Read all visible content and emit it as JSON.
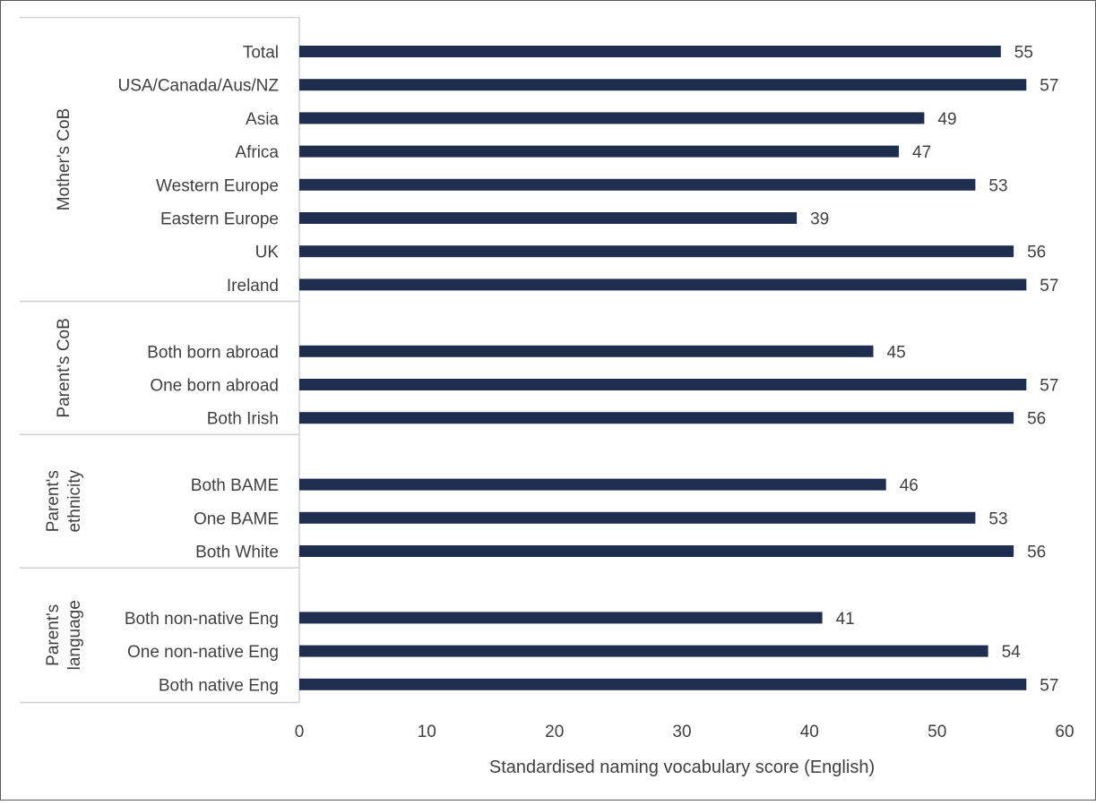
{
  "chart_data": {
    "type": "bar",
    "orientation": "horizontal",
    "xlabel": "Standardised naming vocabulary score (English)",
    "xlim": [
      0,
      60
    ],
    "xticks": [
      0,
      10,
      20,
      30,
      40,
      50,
      60
    ],
    "grid": false,
    "legend": "none",
    "bar_color": "#1f2d4e",
    "groups": [
      {
        "name": "Mother's CoB",
        "name_lines": [
          "Mother's CoB"
        ],
        "categories": [
          "Total",
          "USA/Canada/Aus/NZ",
          "Asia",
          "Africa",
          "Western Europe",
          "Eastern Europe",
          "UK",
          "Ireland"
        ],
        "values": [
          55,
          57,
          49,
          47,
          53,
          39,
          56,
          57
        ]
      },
      {
        "name": "Parent's CoB",
        "name_lines": [
          "Parent's CoB"
        ],
        "categories": [
          "Both born abroad",
          "One born abroad",
          "Both Irish"
        ],
        "values": [
          45,
          57,
          56
        ]
      },
      {
        "name": "Parent's ethnicity",
        "name_lines": [
          "Parent's",
          "ethnicity"
        ],
        "categories": [
          "Both BAME",
          "One BAME",
          "Both White"
        ],
        "values": [
          46,
          53,
          56
        ]
      },
      {
        "name": "Parent's language",
        "name_lines": [
          "Parent's",
          "language"
        ],
        "categories": [
          "Both non-native Eng",
          "One non-native Eng",
          "Both native Eng"
        ],
        "values": [
          41,
          54,
          57
        ]
      }
    ]
  }
}
